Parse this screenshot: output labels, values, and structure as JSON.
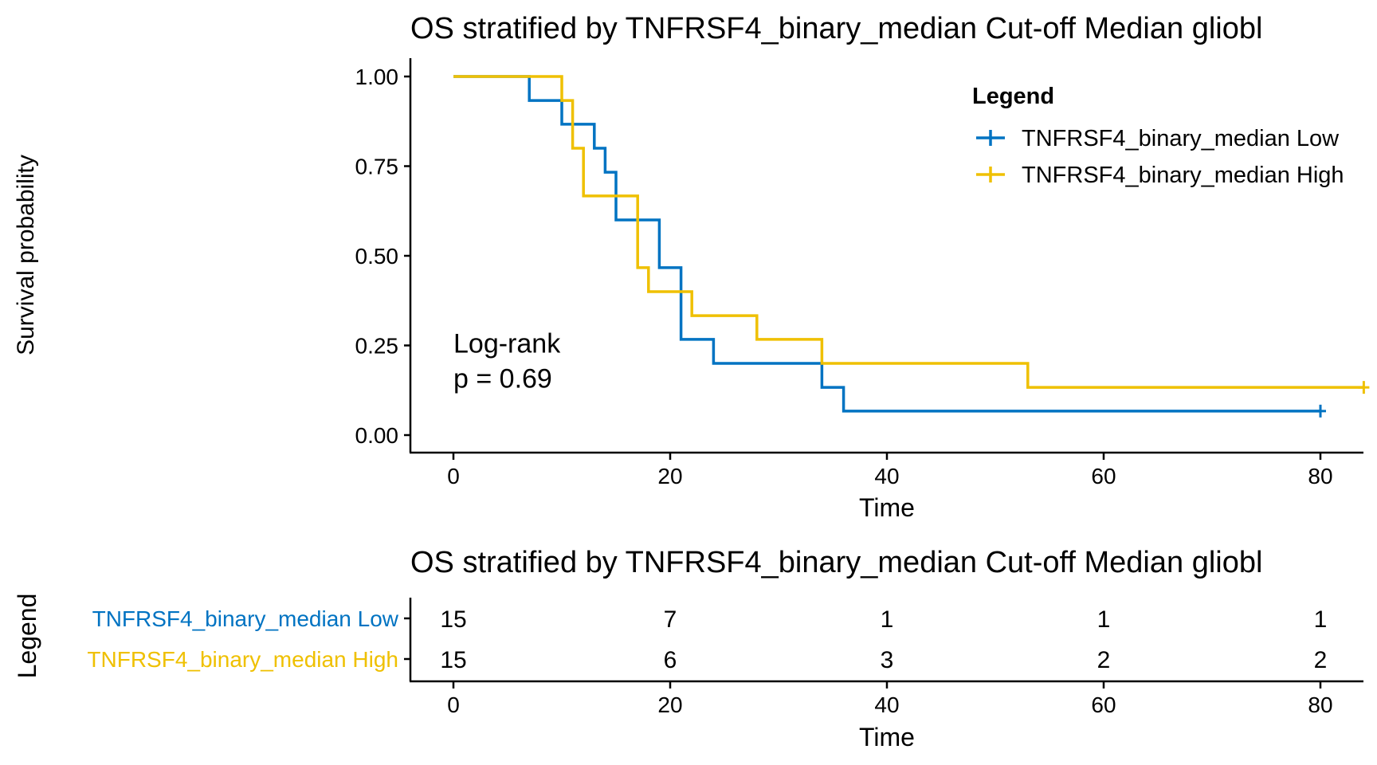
{
  "colors": {
    "low": "#0073C2",
    "high": "#EFC000",
    "axis": "#000000",
    "background": "#ffffff"
  },
  "chart_data": [
    {
      "type": "line",
      "subtype": "kaplan-meier",
      "title": "OS stratified by TNFRSF4_binary_median Cut-off Median gliobl",
      "xlabel": "Time",
      "ylabel": "Survival probability",
      "xlim": [
        0,
        84
      ],
      "ylim": [
        0,
        1
      ],
      "xticks": [
        "0",
        "20",
        "40",
        "60",
        "80"
      ],
      "yticks": [
        "0.00",
        "0.25",
        "0.50",
        "0.75",
        "1.00"
      ],
      "grid": false,
      "legend": {
        "title": "Legend",
        "position": "top-right",
        "items": [
          "TNFRSF4_binary_median Low",
          "TNFRSF4_binary_median High"
        ]
      },
      "annotation": {
        "line1": "Log-rank",
        "line2": "p = 0.69",
        "x": 0,
        "y": 0.17
      },
      "series": [
        {
          "name": "TNFRSF4_binary_median Low",
          "color": "#0073C2",
          "x": [
            0,
            7,
            10,
            13,
            14,
            15,
            19,
            21,
            24,
            34,
            36,
            80
          ],
          "y": [
            1.0,
            0.933,
            0.867,
            0.8,
            0.733,
            0.6,
            0.467,
            0.267,
            0.2,
            0.133,
            0.067,
            0.067
          ],
          "censor": [
            {
              "x": 80,
              "y": 0.067
            }
          ]
        },
        {
          "name": "TNFRSF4_binary_median High",
          "color": "#EFC000",
          "x": [
            0,
            10,
            11,
            12,
            17,
            18,
            22,
            28,
            34,
            53,
            84
          ],
          "y": [
            1.0,
            0.933,
            0.8,
            0.667,
            0.467,
            0.4,
            0.333,
            0.267,
            0.2,
            0.133,
            0.133
          ],
          "censor": [
            {
              "x": 84,
              "y": 0.133
            }
          ]
        }
      ]
    },
    {
      "type": "table",
      "subtype": "risk-table",
      "title": "OS stratified by TNFRSF4_binary_median Cut-off Median gliobl",
      "xlabel": "Time",
      "ylabel": "Legend",
      "xlim": [
        0,
        84
      ],
      "xticks": [
        "0",
        "20",
        "40",
        "60",
        "80"
      ],
      "rows": [
        {
          "name": "TNFRSF4_binary_median Low",
          "color": "#0073C2",
          "x": [
            0,
            20,
            40,
            60,
            80
          ],
          "values": [
            "15",
            "7",
            "1",
            "1",
            "1"
          ]
        },
        {
          "name": "TNFRSF4_binary_median High",
          "color": "#EFC000",
          "x": [
            0,
            20,
            40,
            60,
            80
          ],
          "values": [
            "15",
            "6",
            "3",
            "2",
            "2"
          ]
        }
      ]
    }
  ]
}
